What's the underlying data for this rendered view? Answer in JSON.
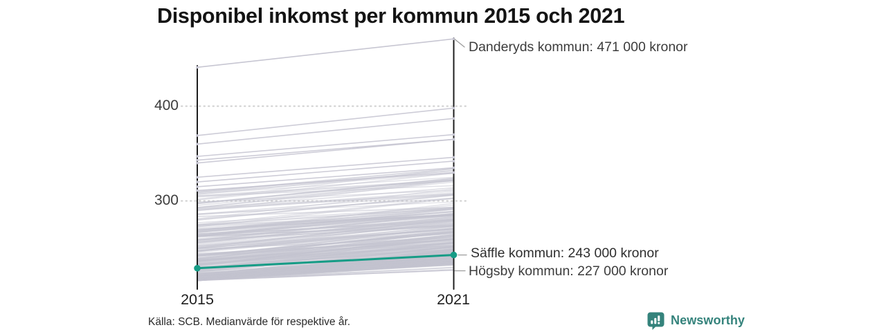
{
  "title": "Disponibel inkomst per kommun 2015 och 2021",
  "source_note": "Källa: SCB. Medianvärde för respektive år.",
  "branding": {
    "name": "Newsworthy",
    "logo_icon": "newsworthy-pin-barchart-icon",
    "brand_color": "#35837c"
  },
  "colors": {
    "accent_teal": "#169c86",
    "background_line": "#c4c3d0",
    "axis": "#1d1d1d",
    "grid": "#cfcfcf",
    "leader": "#9c9c9c",
    "text_dark": "#1f1f1f",
    "text_gray": "#3c3c3c"
  },
  "chart_data": {
    "type": "line",
    "subtype": "slope-chart",
    "title": "Disponibel inkomst per kommun 2015 och 2021",
    "x_categories": [
      "2015",
      "2021"
    ],
    "unit_label": "tusen kronor",
    "y_ticks": [
      400,
      300
    ],
    "y_axis_range": [
      210,
      475
    ],
    "grid": "dotted horizontal lines at y ticks",
    "legend_position": "none",
    "series_annotated": [
      {
        "name": "Danderyds kommun",
        "label": "Danderyds kommun: 471 000 kronor",
        "values": {
          "2015": 441,
          "2021": 471
        },
        "highlight": false
      },
      {
        "name": "Säffle kommun",
        "label": "Säffle kommun: 243 000 kronor",
        "values": {
          "2015": 229,
          "2021": 243
        },
        "highlight": true
      },
      {
        "name": "Högsby kommun",
        "label": "Högsby kommun: 227 000 kronor",
        "values": {
          "2015": 216,
          "2021": 227
        },
        "highlight": false
      }
    ],
    "background_series": {
      "description": "unlabeled gray lines, one per Swedish municipality (~290 total)",
      "count_random": 278,
      "outlier_pairs": [
        [
          369,
          398
        ],
        [
          360,
          387
        ],
        [
          347,
          370
        ],
        [
          343,
          365
        ],
        [
          340,
          365
        ],
        [
          325,
          346
        ],
        [
          320,
          342
        ],
        [
          315,
          335
        ],
        [
          311,
          330
        ]
      ],
      "random_value_model": {
        "v2015_min": 216,
        "v2015_spread": 94,
        "v2015_skew": 2.6,
        "delta_min": 9,
        "delta_max": 34,
        "v2021_clamp": [
          228,
          334
        ]
      }
    }
  }
}
